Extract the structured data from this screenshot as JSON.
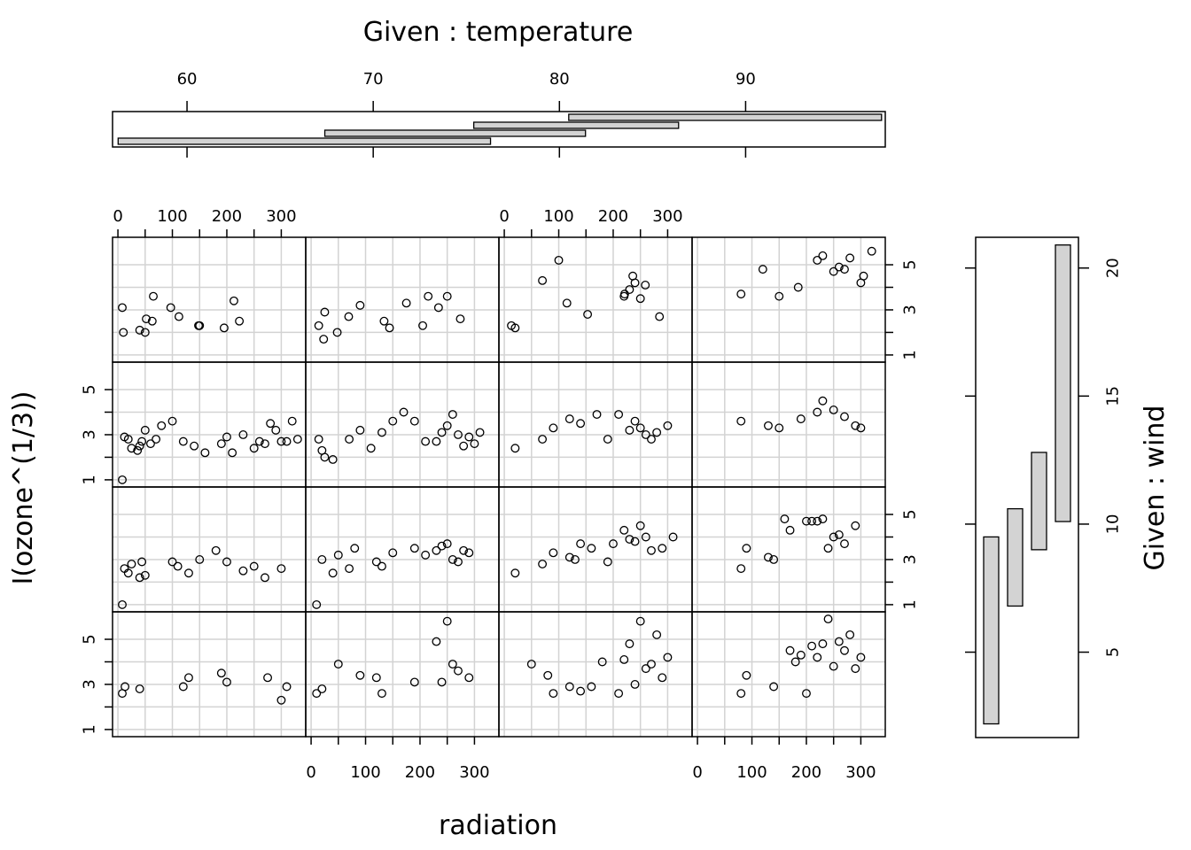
{
  "chart_data": {
    "type": "scatter",
    "layout": "coplot, 4 columns (temperature) x 4 rows (wind)",
    "x_var": "radiation",
    "y_var": "I(ozone^(1/3))",
    "xlabel": "radiation",
    "ylabel": "I(ozone^(1/3))",
    "xlim": [
      -5,
      340
    ],
    "ylim": [
      0.8,
      6.1
    ],
    "x_ticks": [
      0,
      100,
      200,
      300
    ],
    "y_ticks": [
      1,
      3,
      5
    ],
    "grid": true,
    "grid_color": "#d3d3d3",
    "point_style": "open circle",
    "given_temperature": {
      "title": "Given : temperature",
      "ticks": [
        60,
        70,
        80,
        90
      ],
      "range": [
        56,
        97.5
      ],
      "intervals": [
        [
          56.3,
          76.3
        ],
        [
          67.4,
          81.4
        ],
        [
          75.4,
          86.4
        ],
        [
          80.5,
          97.3
        ]
      ],
      "bar_fill": "#d3d3d3"
    },
    "given_wind": {
      "title": "Given : wind",
      "ticks": [
        5,
        10,
        15,
        20
      ],
      "range": [
        1.7,
        21.2
      ],
      "intervals": [
        [
          2.2,
          9.5
        ],
        [
          6.8,
          10.6
        ],
        [
          9.0,
          12.8
        ],
        [
          10.1,
          20.9
        ]
      ],
      "bar_fill": "#d3d3d3"
    },
    "panels": [
      {
        "row": 1,
        "col": 1,
        "x": [
          40,
          63,
          150,
          223,
          50,
          97,
          148,
          213,
          112,
          195,
          65,
          8,
          10,
          52
        ],
        "y": [
          2.1,
          2.5,
          2.3,
          2.5,
          2.0,
          3.1,
          2.3,
          3.4,
          2.7,
          2.2,
          3.6,
          3.1,
          2.0,
          2.6
        ]
      },
      {
        "row": 1,
        "col": 2,
        "x": [
          25,
          69,
          90,
          134,
          144,
          215,
          250,
          14,
          23,
          48,
          205,
          274,
          234,
          175
        ],
        "y": [
          2.9,
          2.7,
          3.2,
          2.5,
          2.2,
          3.6,
          3.6,
          2.3,
          1.7,
          2.0,
          2.3,
          2.6,
          3.1,
          3.3
        ]
      },
      {
        "row": 1,
        "col": 3,
        "x": [
          13,
          70,
          100,
          236,
          259,
          285,
          20,
          153,
          221,
          230,
          250,
          220,
          115,
          240
        ],
        "y": [
          2.3,
          4.3,
          5.2,
          4.5,
          4.1,
          2.7,
          2.2,
          2.8,
          3.7,
          3.9,
          3.5,
          3.6,
          3.3,
          4.2
        ]
      },
      {
        "row": 1,
        "col": 4,
        "x": [
          80,
          120,
          150,
          185,
          220,
          230,
          250,
          260,
          270,
          280,
          300,
          305,
          320
        ],
        "y": [
          3.7,
          4.8,
          3.6,
          4.0,
          5.2,
          5.4,
          4.7,
          4.9,
          4.8,
          5.3,
          4.2,
          4.5,
          5.6
        ]
      },
      {
        "row": 2,
        "col": 1,
        "x": [
          8,
          12,
          19,
          25,
          36,
          40,
          44,
          50,
          60,
          70,
          80,
          100,
          120,
          140,
          160,
          190,
          200,
          210,
          230,
          250,
          260,
          270,
          280,
          290,
          300,
          310,
          320,
          330
        ],
        "y": [
          1.0,
          2.9,
          2.8,
          2.4,
          2.3,
          2.5,
          2.7,
          3.2,
          2.6,
          2.8,
          3.4,
          3.6,
          2.7,
          2.5,
          2.2,
          2.6,
          2.9,
          2.2,
          3.0,
          2.4,
          2.7,
          2.6,
          3.5,
          3.2,
          2.7,
          2.7,
          3.6,
          2.8
        ]
      },
      {
        "row": 2,
        "col": 2,
        "x": [
          14,
          20,
          25,
          40,
          70,
          90,
          110,
          130,
          150,
          170,
          190,
          210,
          230,
          240,
          250,
          260,
          270,
          280,
          290,
          300,
          310
        ],
        "y": [
          2.8,
          2.3,
          2.0,
          1.9,
          2.8,
          3.2,
          2.4,
          3.1,
          3.6,
          4.0,
          3.6,
          2.7,
          2.7,
          3.1,
          3.4,
          3.9,
          3.0,
          2.5,
          2.9,
          2.6,
          3.1
        ]
      },
      {
        "row": 2,
        "col": 3,
        "x": [
          20,
          70,
          90,
          120,
          140,
          170,
          190,
          210,
          230,
          240,
          250,
          260,
          270,
          280,
          300
        ],
        "y": [
          2.4,
          2.8,
          3.3,
          3.7,
          3.5,
          3.9,
          2.8,
          3.9,
          3.2,
          3.6,
          3.3,
          3.0,
          2.8,
          3.1,
          3.4
        ]
      },
      {
        "row": 2,
        "col": 4,
        "x": [
          80,
          130,
          150,
          190,
          220,
          230,
          250,
          270,
          290,
          300
        ],
        "y": [
          3.6,
          3.4,
          3.3,
          3.7,
          4.0,
          4.5,
          4.1,
          3.8,
          3.4,
          3.3
        ]
      },
      {
        "row": 3,
        "col": 1,
        "x": [
          8,
          12,
          19,
          25,
          40,
          44,
          50,
          100,
          110,
          130,
          150,
          180,
          200,
          230,
          250,
          270,
          300
        ],
        "y": [
          1.0,
          2.6,
          2.4,
          2.8,
          2.2,
          2.9,
          2.3,
          2.9,
          2.7,
          2.4,
          3.0,
          3.4,
          2.9,
          2.5,
          2.7,
          2.2,
          2.6
        ]
      },
      {
        "row": 3,
        "col": 2,
        "x": [
          10,
          20,
          40,
          50,
          70,
          80,
          120,
          130,
          150,
          190,
          210,
          230,
          240,
          250,
          260,
          270,
          280,
          290
        ],
        "y": [
          1.0,
          3.0,
          2.4,
          3.2,
          2.6,
          3.5,
          2.9,
          2.7,
          3.3,
          3.5,
          3.2,
          3.4,
          3.6,
          3.7,
          3.0,
          2.9,
          3.4,
          3.3
        ]
      },
      {
        "row": 3,
        "col": 3,
        "x": [
          20,
          70,
          90,
          120,
          130,
          140,
          160,
          190,
          200,
          220,
          230,
          240,
          250,
          260,
          270,
          290,
          310
        ],
        "y": [
          2.4,
          2.8,
          3.3,
          3.1,
          3.0,
          3.7,
          3.5,
          2.9,
          3.7,
          4.3,
          3.9,
          3.8,
          4.5,
          4.0,
          3.4,
          3.5,
          4.0
        ]
      },
      {
        "row": 3,
        "col": 4,
        "x": [
          80,
          90,
          130,
          140,
          160,
          170,
          200,
          210,
          220,
          230,
          240,
          250,
          260,
          270,
          290
        ],
        "y": [
          2.6,
          3.5,
          3.1,
          3.0,
          4.8,
          4.3,
          4.7,
          4.7,
          4.7,
          4.8,
          3.5,
          4.0,
          4.1,
          3.7,
          4.5
        ]
      },
      {
        "row": 4,
        "col": 1,
        "x": [
          8,
          13,
          40,
          120,
          130,
          190,
          200,
          275,
          300,
          310
        ],
        "y": [
          2.6,
          2.9,
          2.8,
          2.9,
          3.3,
          3.5,
          3.1,
          3.3,
          2.3,
          2.9
        ]
      },
      {
        "row": 4,
        "col": 2,
        "x": [
          10,
          20,
          50,
          90,
          120,
          130,
          190,
          230,
          240,
          250,
          260,
          270,
          290
        ],
        "y": [
          2.6,
          2.8,
          3.9,
          3.4,
          3.3,
          2.6,
          3.1,
          4.9,
          3.1,
          5.8,
          3.9,
          3.6,
          3.3
        ]
      },
      {
        "row": 4,
        "col": 3,
        "x": [
          50,
          80,
          90,
          120,
          140,
          160,
          180,
          210,
          220,
          230,
          240,
          250,
          260,
          270,
          280,
          290,
          300
        ],
        "y": [
          3.9,
          3.4,
          2.6,
          2.9,
          2.7,
          2.9,
          4.0,
          2.6,
          4.1,
          4.8,
          3.0,
          5.8,
          3.7,
          3.9,
          5.2,
          3.3,
          4.2
        ]
      },
      {
        "row": 4,
        "col": 4,
        "x": [
          80,
          90,
          140,
          170,
          180,
          190,
          200,
          210,
          220,
          230,
          240,
          250,
          260,
          270,
          280,
          290,
          300
        ],
        "y": [
          2.6,
          3.4,
          2.9,
          4.5,
          4.0,
          4.3,
          2.6,
          4.7,
          4.2,
          4.8,
          5.9,
          3.8,
          4.9,
          4.5,
          5.2,
          3.7,
          4.2
        ]
      }
    ]
  }
}
